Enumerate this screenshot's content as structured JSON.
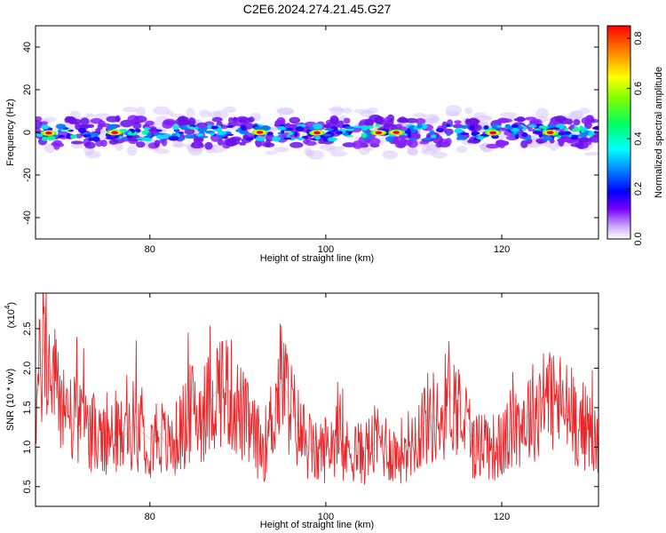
{
  "title": "C2E6.2024.274.21.45.G27",
  "chart_data": [
    {
      "type": "heatmap",
      "xlabel": "Height of straight line (km)",
      "ylabel": "Frequency (Hz)",
      "xlim": [
        67,
        131
      ],
      "ylim": [
        -50,
        50
      ],
      "x_ticks": [
        80,
        100,
        120
      ],
      "y_ticks": [
        -40,
        -20,
        0,
        20,
        40
      ],
      "band_center_hz": 0,
      "band_halfwidth_hz": 6,
      "hot_spots_km": [
        68.5,
        76,
        92.5,
        99,
        106,
        108,
        119,
        125.5
      ],
      "colorbar": {
        "label": "Normalized spectral amplitude",
        "range": [
          0,
          0.85
        ],
        "ticks": [
          0.0,
          0.2,
          0.4,
          0.6,
          0.8
        ],
        "tick_labels": [
          "0.0",
          "0.2",
          "0.4",
          "0.6",
          "0.8"
        ]
      }
    },
    {
      "type": "line",
      "xlabel": "Height of straight line (km)",
      "ylabel": "SNR (10 * v/v)",
      "y_multiplier": "(x10",
      "y_multiplier_exp": "4",
      "y_multiplier_close": ")",
      "xlim": [
        67,
        131
      ],
      "ylim": [
        0.25,
        2.95
      ],
      "x_ticks": [
        80,
        100,
        120
      ],
      "y_ticks": [
        0.5,
        1.0,
        1.5,
        2.0,
        2.5
      ],
      "y_tick_labels": [
        "0.5",
        "1.0",
        "1.5",
        "2.0",
        "2.5"
      ],
      "series": [
        {
          "color": "#e8272b",
          "x": [
            67,
            68,
            69,
            70,
            71,
            72,
            73,
            74,
            75,
            76,
            77,
            78,
            79,
            80,
            81,
            82,
            83,
            84,
            85,
            86,
            87,
            88,
            89,
            90,
            91,
            92,
            93,
            94,
            95,
            96,
            97,
            98,
            99,
            100,
            101,
            102,
            103,
            104,
            105,
            106,
            107,
            108,
            109,
            110,
            111,
            112,
            113,
            114,
            115,
            116,
            117,
            118,
            119,
            120,
            121,
            122,
            123,
            124,
            125,
            126,
            127,
            128,
            129,
            130,
            131
          ],
          "y": [
            1.5,
            2.3,
            1.8,
            1.6,
            1.4,
            1.2,
            1.3,
            1.1,
            1.0,
            1.2,
            1.1,
            1.3,
            1.2,
            1.1,
            1.2,
            1.0,
            1.1,
            1.3,
            1.5,
            1.4,
            1.6,
            1.8,
            1.7,
            1.5,
            1.3,
            1.1,
            1.0,
            1.4,
            1.9,
            1.5,
            1.2,
            1.0,
            0.9,
            1.0,
            1.1,
            0.9,
            1.0,
            0.9,
            1.0,
            1.1,
            1.0,
            0.9,
            1.0,
            1.1,
            1.3,
            1.4,
            1.3,
            1.7,
            1.5,
            1.3,
            1.0,
            1.1,
            1.0,
            1.0,
            1.2,
            1.3,
            1.4,
            1.5,
            1.7,
            1.6,
            1.5,
            1.4,
            1.3,
            1.2,
            1.0
          ]
        }
      ]
    }
  ]
}
